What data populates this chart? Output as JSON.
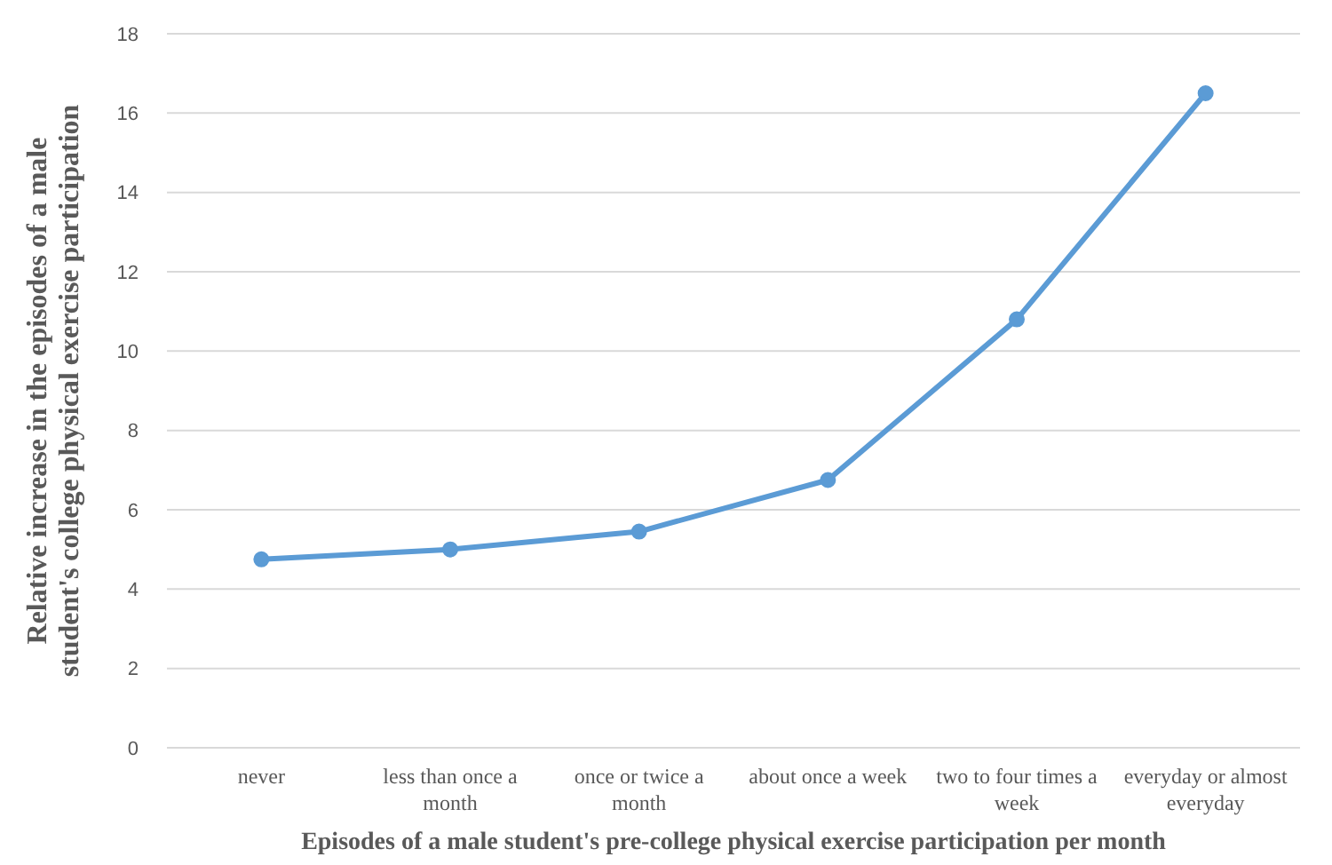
{
  "chart_data": {
    "type": "line",
    "xlabel": "Episodes of a male student's pre-college physical exercise participation per month",
    "ylabel": "Relative increase in the episodes of a male student's college physical exercise participation",
    "categories": [
      "never",
      "less than once a month",
      "once or twice a month",
      "about once a week",
      "two to four times a week",
      "everyday or almost everyday"
    ],
    "series": [
      {
        "color": "#5b9bd5",
        "values": [
          4.75,
          5.0,
          5.45,
          6.75,
          10.8,
          16.5
        ]
      }
    ],
    "ylim": [
      0,
      18
    ],
    "yticks": [
      0,
      2,
      4,
      6,
      8,
      10,
      12,
      14,
      16,
      18
    ],
    "grid": "y",
    "marker": "circle",
    "line_style": "solid"
  }
}
